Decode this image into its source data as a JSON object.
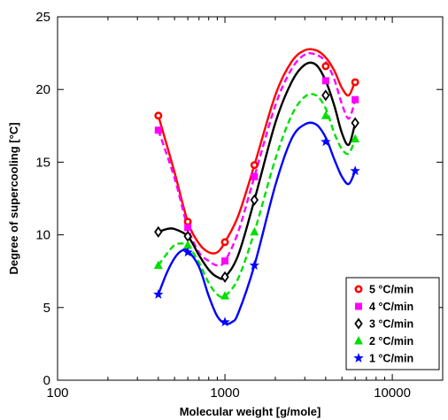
{
  "chart_data": {
    "type": "scatter",
    "xlabel": "Molecular weight [g/mole]",
    "ylabel": "Degree of supercooling [°C]",
    "x_scale": "log",
    "xlim": [
      100,
      20000
    ],
    "ylim": [
      0,
      25
    ],
    "x_ticks": [
      100,
      1000,
      10000
    ],
    "x_tick_labels": [
      "100",
      "1000",
      "10000"
    ],
    "y_ticks": [
      0,
      5,
      10,
      15,
      20,
      25
    ],
    "y_tick_labels": [
      "0",
      "5",
      "10",
      "15",
      "20",
      "25"
    ],
    "grid": false,
    "legend_position": "bottom-right",
    "x": [
      400,
      600,
      1000,
      1500,
      4000,
      6000
    ],
    "series": [
      {
        "name": "5 °C/min",
        "color": "#ff0000",
        "marker": "circle",
        "line": "solid",
        "values": [
          18.2,
          10.9,
          9.5,
          14.8,
          21.6,
          20.5
        ],
        "curve": [
          [
            400,
            18.2
          ],
          [
            500,
            14.3
          ],
          [
            600,
            10.9
          ],
          [
            700,
            9.4
          ],
          [
            800,
            8.8
          ],
          [
            900,
            8.8
          ],
          [
            1000,
            9.5
          ],
          [
            1200,
            11.3
          ],
          [
            1500,
            14.8
          ],
          [
            2000,
            19.6
          ],
          [
            2500,
            21.9
          ],
          [
            3000,
            22.7
          ],
          [
            3500,
            22.7
          ],
          [
            4000,
            22.2
          ],
          [
            4500,
            21.3
          ],
          [
            5000,
            20.1
          ],
          [
            5500,
            19.6
          ],
          [
            6000,
            20.6
          ]
        ]
      },
      {
        "name": "4 °C/min",
        "color": "#ff00ff",
        "marker": "square",
        "line": "dashed",
        "values": [
          17.2,
          10.5,
          8.2,
          14.0,
          20.6,
          19.3
        ],
        "curve": [
          [
            400,
            17.2
          ],
          [
            500,
            13.9
          ],
          [
            600,
            10.5
          ],
          [
            700,
            8.8
          ],
          [
            800,
            8.2
          ],
          [
            900,
            7.9
          ],
          [
            1000,
            8.2
          ],
          [
            1200,
            10.2
          ],
          [
            1500,
            14.0
          ],
          [
            2000,
            18.9
          ],
          [
            2500,
            21.4
          ],
          [
            3000,
            22.4
          ],
          [
            3500,
            22.4
          ],
          [
            4000,
            21.9
          ],
          [
            4500,
            20.7
          ],
          [
            5000,
            19.0
          ],
          [
            5500,
            18.0
          ],
          [
            6000,
            19.3
          ]
        ]
      },
      {
        "name": "3 °C/min",
        "color": "#000000",
        "marker": "diamond",
        "line": "solid",
        "values": [
          10.2,
          9.9,
          7.1,
          12.4,
          19.6,
          17.7
        ],
        "curve": [
          [
            400,
            10.2
          ],
          [
            450,
            10.4
          ],
          [
            500,
            10.4
          ],
          [
            600,
            9.9
          ],
          [
            700,
            8.6
          ],
          [
            800,
            7.6
          ],
          [
            900,
            7.1
          ],
          [
            1000,
            7.1
          ],
          [
            1200,
            8.6
          ],
          [
            1500,
            12.4
          ],
          [
            2000,
            17.7
          ],
          [
            2500,
            20.5
          ],
          [
            3000,
            21.7
          ],
          [
            3500,
            21.7
          ],
          [
            4000,
            20.6
          ],
          [
            4500,
            18.9
          ],
          [
            5000,
            17.0
          ],
          [
            5500,
            16.2
          ],
          [
            6000,
            17.7
          ]
        ]
      },
      {
        "name": "2 °C/min",
        "color": "#00e000",
        "marker": "triangle",
        "line": "dashed",
        "values": [
          7.9,
          9.3,
          5.8,
          10.2,
          18.2,
          16.6
        ],
        "curve": [
          [
            400,
            7.9
          ],
          [
            450,
            8.7
          ],
          [
            500,
            9.3
          ],
          [
            550,
            9.4
          ],
          [
            600,
            9.3
          ],
          [
            700,
            8.1
          ],
          [
            800,
            6.7
          ],
          [
            900,
            5.9
          ],
          [
            1000,
            5.8
          ],
          [
            1200,
            7.0
          ],
          [
            1500,
            10.2
          ],
          [
            2000,
            15.2
          ],
          [
            2500,
            18.2
          ],
          [
            3000,
            19.5
          ],
          [
            3500,
            19.6
          ],
          [
            4000,
            18.7
          ],
          [
            4500,
            17.0
          ],
          [
            5000,
            15.9
          ],
          [
            5500,
            15.6
          ],
          [
            6000,
            16.6
          ]
        ]
      },
      {
        "name": "1 °C/min",
        "color": "#0000ff",
        "marker": "star",
        "line": "solid",
        "values": [
          5.9,
          8.8,
          4.0,
          7.9,
          16.4,
          14.4
        ],
        "curve": [
          [
            400,
            5.9
          ],
          [
            450,
            7.4
          ],
          [
            500,
            8.4
          ],
          [
            550,
            8.9
          ],
          [
            600,
            8.9
          ],
          [
            700,
            7.8
          ],
          [
            800,
            5.8
          ],
          [
            900,
            4.4
          ],
          [
            1000,
            3.9
          ],
          [
            1100,
            4.0
          ],
          [
            1200,
            4.6
          ],
          [
            1500,
            7.9
          ],
          [
            2000,
            13.4
          ],
          [
            2500,
            16.6
          ],
          [
            3000,
            17.6
          ],
          [
            3500,
            17.6
          ],
          [
            4000,
            16.7
          ],
          [
            4500,
            15.2
          ],
          [
            5000,
            14.0
          ],
          [
            5500,
            13.5
          ],
          [
            6000,
            14.4
          ]
        ]
      }
    ]
  }
}
